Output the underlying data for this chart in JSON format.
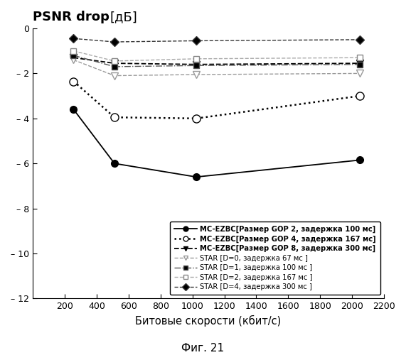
{
  "title": "PSNR drop [дБ]",
  "xlabel": "Битовые скорости (кбит/с)",
  "caption": "Фиг. 21",
  "ylim": [
    -12,
    0
  ],
  "xlim": [
    0,
    2200
  ],
  "yticks": [
    0,
    -2,
    -4,
    -6,
    -8,
    -10,
    -12
  ],
  "xticks": [
    200,
    400,
    600,
    800,
    1000,
    1200,
    1400,
    1600,
    1800,
    2000,
    2200
  ],
  "series": [
    {
      "label_bold": "MC-EZBC",
      "label_normal": "[Размер GOP 2, задержка 100 мс]",
      "x": [
        256,
        512,
        1024,
        2048
      ],
      "y": [
        -3.6,
        -6.0,
        -6.6,
        -5.85
      ],
      "color": "#000000",
      "linestyle": "-",
      "marker": "o",
      "markerfacecolor": "black",
      "markeredgecolor": "black",
      "linewidth": 1.3,
      "markersize": 7
    },
    {
      "label_bold": "MC-EZBC",
      "label_normal": "[Размер GOP 4, задержка 167 мс]",
      "x": [
        256,
        512,
        1024,
        2048
      ],
      "y": [
        -2.35,
        -3.95,
        -4.0,
        -3.0
      ],
      "color": "#000000",
      "linestyle": ":",
      "marker": "o",
      "markerfacecolor": "white",
      "markeredgecolor": "black",
      "linewidth": 1.8,
      "markersize": 8
    },
    {
      "label_bold": "MC-EZBC",
      "label_normal": "[Размер GOP 8, задержка 300 мс]",
      "x": [
        256,
        512,
        1024,
        2048
      ],
      "y": [
        -1.3,
        -1.55,
        -1.6,
        -1.55
      ],
      "color": "#000000",
      "linestyle": "--",
      "marker": "v",
      "markerfacecolor": "black",
      "markeredgecolor": "black",
      "linewidth": 1.3,
      "markersize": 7
    },
    {
      "label_bold": "STAR",
      "label_normal": " [D=0, задержка 67 мс ]",
      "x": [
        256,
        512,
        1024,
        2048
      ],
      "y": [
        -1.4,
        -2.1,
        -2.05,
        -2.0
      ],
      "color": "#999999",
      "linestyle": "--",
      "marker": "v",
      "markerfacecolor": "white",
      "markeredgecolor": "#999999",
      "linewidth": 1.0,
      "markersize": 7
    },
    {
      "label_bold": "STAR",
      "label_normal": " [D=1, задержка 100 мс ]",
      "x": [
        256,
        512,
        1024,
        2048
      ],
      "y": [
        -1.2,
        -1.7,
        -1.65,
        -1.6
      ],
      "color": "#555555",
      "linestyle": "-.",
      "marker": "s",
      "markerfacecolor": "black",
      "markeredgecolor": "#555555",
      "linewidth": 1.0,
      "markersize": 6
    },
    {
      "label_bold": "STAR",
      "label_normal": " [D=2, задержка 167 мс ]",
      "x": [
        256,
        512,
        1024,
        2048
      ],
      "y": [
        -1.0,
        -1.45,
        -1.35,
        -1.3
      ],
      "color": "#aaaaaa",
      "linestyle": "--",
      "marker": "s",
      "markerfacecolor": "white",
      "markeredgecolor": "#888888",
      "linewidth": 1.0,
      "markersize": 6
    },
    {
      "label_bold": "STAR",
      "label_normal": " [D=4, задержка 300 мс ]",
      "x": [
        256,
        512,
        1024,
        2048
      ],
      "y": [
        -0.45,
        -0.6,
        -0.55,
        -0.5
      ],
      "color": "#333333",
      "linestyle": "--",
      "marker": "D",
      "markerfacecolor": "black",
      "markeredgecolor": "#333333",
      "linewidth": 1.0,
      "markersize": 6
    }
  ]
}
